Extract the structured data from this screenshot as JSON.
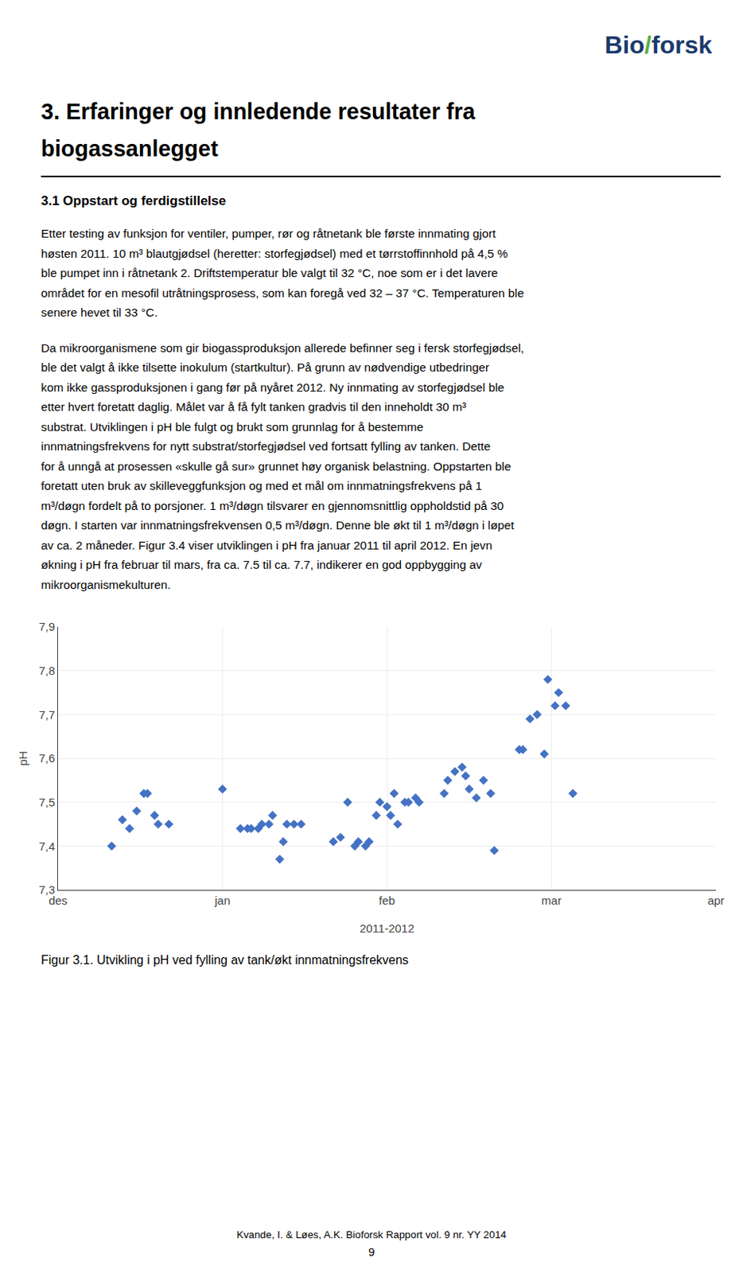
{
  "logo": [
    {
      "text": "Bio",
      "color": "#1B3A6B"
    },
    {
      "text": "/",
      "color": "#5BAD3E"
    },
    {
      "text": "forsk",
      "color": "#1B3A6B"
    }
  ],
  "chapter_title": [
    "3.   Erfaringer og innledende resultater fra",
    "biogassanlegget"
  ],
  "section_title": "3.1   Oppstart og ferdigstillelse",
  "paragraphs": [
    [
      "Etter testing av funksjon for ventiler, pumper, rør og råtnetank ble første innmating gjort",
      "høsten 2011. 10 m³ blautgjødsel (heretter: storfegjødsel) med et tørrstoffinnhold på 4,5 %",
      "ble pumpet inn i råtnetank 2. Driftstemperatur ble valgt til 32 °C, noe som er i det lavere",
      "området for en mesofil utråtningsprosess, som kan foregå ved 32 – 37 °C. Temperaturen ble",
      "senere hevet til 33 °C."
    ],
    [
      "Da mikroorganismene som gir biogassproduksjon allerede befinner seg i fersk storfegjødsel,",
      "ble det valgt å ikke tilsette inokulum (startkultur). På grunn av nødvendige utbedringer",
      "kom ikke gassproduksjonen i gang før på nyåret 2012. Ny innmating av storfegjødsel ble",
      "etter hvert foretatt daglig. Målet var å få fylt tanken gradvis til den inneholdt 30 m³",
      "substrat. Utviklingen i pH ble fulgt og brukt som grunnlag for å bestemme",
      "innmatningsfrekvens for nytt substrat/storfegjødsel ved fortsatt fylling av tanken. Dette",
      "for å unngå at prosessen «skulle gå sur» grunnet høy organisk belastning. Oppstarten ble",
      "foretatt uten bruk av skilleveggfunksjon og med et mål om innmatningsfrekvens på 1",
      "m³/døgn fordelt på to porsjoner. 1 m³/døgn tilsvarer en gjennomsnittlig oppholdstid på 30",
      "døgn. I starten var innmatningsfrekvensen 0,5 m³/døgn. Denne ble økt til 1 m³/døgn i løpet",
      "av ca. 2 måneder. Figur 3.4 viser utviklingen i pH fra januar 2011 til april 2012. En jevn",
      "økning i pH fra februar til mars, fra ca. 7.5 til ca. 7.7, indikerer en god oppbygging av",
      "mikroorganismekulturen."
    ]
  ],
  "caption": "Figur 3.1. Utvikling i pH ved fylling av tank/økt innmatningsfrekvens",
  "footer": [
    "Kvande, I. & Løes, A.K.  Bioforsk Rapport vol. 9 nr. YY 2014",
    "9"
  ],
  "chart_data": {
    "type": "scatter",
    "x": [
      -31,
      -28,
      -26,
      -24,
      -22,
      -21,
      -19,
      -18,
      -15,
      0,
      5,
      7,
      8,
      10,
      11,
      13,
      14,
      16,
      17,
      18,
      20,
      22,
      31,
      33,
      35,
      37,
      38,
      40,
      41,
      43,
      44,
      46,
      47,
      48,
      49,
      51,
      52,
      54,
      55,
      62,
      63,
      65,
      67,
      68,
      69,
      71,
      73,
      75,
      76,
      83,
      84,
      86,
      88,
      90,
      91,
      93,
      94,
      96,
      98
    ],
    "values": [
      7.4,
      7.46,
      7.44,
      7.48,
      7.52,
      7.52,
      7.47,
      7.45,
      7.45,
      7.53,
      7.44,
      7.44,
      7.44,
      7.44,
      7.45,
      7.45,
      7.47,
      7.37,
      7.41,
      7.45,
      7.45,
      7.45,
      7.41,
      7.42,
      7.5,
      7.4,
      7.41,
      7.4,
      7.41,
      7.47,
      7.5,
      7.49,
      7.47,
      7.52,
      7.45,
      7.5,
      7.5,
      7.51,
      7.5,
      7.52,
      7.55,
      7.57,
      7.58,
      7.56,
      7.53,
      7.51,
      7.55,
      7.52,
      7.39,
      7.62,
      7.62,
      7.69,
      7.7,
      7.61,
      7.78,
      7.72,
      7.75,
      7.72,
      7.52
    ],
    "color": "#4472C4",
    "marker": "diamond",
    "xlabel": "2011-2012",
    "ylabel": "pH",
    "xlim": [
      -46,
      138
    ],
    "xticks": [
      {
        "value": -46,
        "label": "des"
      },
      {
        "value": 0,
        "label": "jan"
      },
      {
        "value": 46,
        "label": "feb"
      },
      {
        "value": 92,
        "label": "mar"
      },
      {
        "value": 138,
        "label": "apr"
      }
    ],
    "ylim": [
      7.3,
      7.9
    ],
    "yticks": [
      {
        "value": 7.3,
        "label": "7,3"
      },
      {
        "value": 7.4,
        "label": "7,4"
      },
      {
        "value": 7.5,
        "label": "7,5"
      },
      {
        "value": 7.6,
        "label": "7,6"
      },
      {
        "value": 7.7,
        "label": "7,7"
      },
      {
        "value": 7.8,
        "label": "7,8"
      },
      {
        "value": 7.9,
        "label": "7,9"
      }
    ],
    "grid": true
  }
}
